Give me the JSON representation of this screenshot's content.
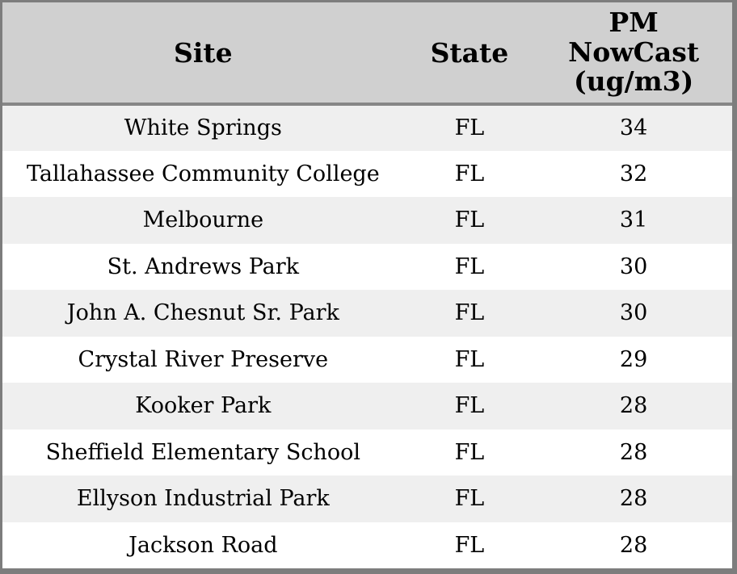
{
  "colors": {
    "frame_border": "#7d7d7d",
    "header_bg": "#d0d0d0",
    "header_separator": "#868686",
    "row_alt_bg": "#efefef",
    "row_bg": "#ffffff",
    "text": "#000000"
  },
  "table": {
    "columns": [
      {
        "key": "site",
        "label": "Site"
      },
      {
        "key": "state",
        "label": "State"
      },
      {
        "key": "pm",
        "label": "PM\nNowCast\n(ug/m3)"
      }
    ],
    "rows": [
      {
        "site": "White Springs",
        "state": "FL",
        "pm": "34"
      },
      {
        "site": "Tallahassee Community College",
        "state": "FL",
        "pm": "32"
      },
      {
        "site": "Melbourne",
        "state": "FL",
        "pm": "31"
      },
      {
        "site": "St. Andrews Park",
        "state": "FL",
        "pm": "30"
      },
      {
        "site": "John A. Chesnut Sr. Park",
        "state": "FL",
        "pm": "30"
      },
      {
        "site": "Crystal River Preserve",
        "state": "FL",
        "pm": "29"
      },
      {
        "site": "Kooker Park",
        "state": "FL",
        "pm": "28"
      },
      {
        "site": "Sheffield Elementary School",
        "state": "FL",
        "pm": "28"
      },
      {
        "site": "Ellyson Industrial Park",
        "state": "FL",
        "pm": "28"
      },
      {
        "site": "Jackson Road",
        "state": "FL",
        "pm": "28"
      }
    ]
  },
  "chart_data": {
    "type": "table",
    "title": "",
    "columns": [
      "Site",
      "State",
      "PM NowCast (ug/m3)"
    ],
    "rows": [
      [
        "White Springs",
        "FL",
        34
      ],
      [
        "Tallahassee Community College",
        "FL",
        32
      ],
      [
        "Melbourne",
        "FL",
        31
      ],
      [
        "St. Andrews Park",
        "FL",
        30
      ],
      [
        "John A. Chesnut Sr. Park",
        "FL",
        30
      ],
      [
        "Crystal River Preserve",
        "FL",
        29
      ],
      [
        "Kooker Park",
        "FL",
        28
      ],
      [
        "Sheffield Elementary School",
        "FL",
        28
      ],
      [
        "Ellyson Industrial Park",
        "FL",
        28
      ],
      [
        "Jackson Road",
        "FL",
        28
      ]
    ]
  }
}
